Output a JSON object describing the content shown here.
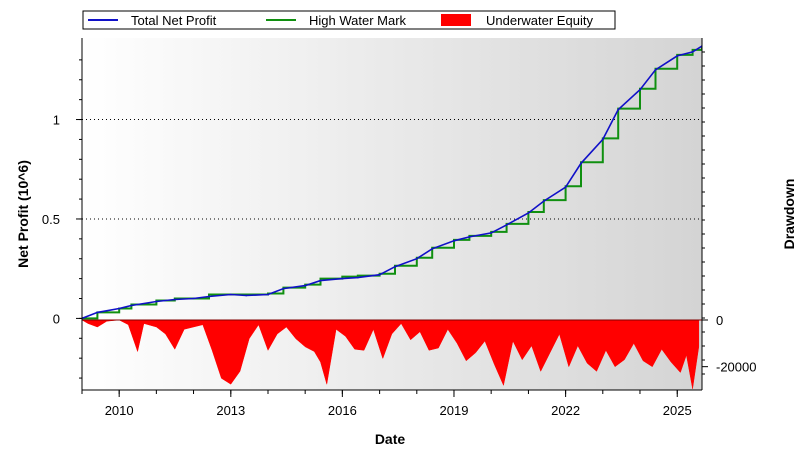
{
  "chart_data": {
    "type": "line",
    "xlabel": "Date",
    "ylabel": "Net Profit (10^6)",
    "y2label": "Drawdown",
    "legend_placement": "top",
    "x_range": [
      "2009-01-01",
      "2025-09-01"
    ],
    "x_ticks": [
      "2010",
      "2013",
      "2016",
      "2019",
      "2022",
      "2025"
    ],
    "ylim": [
      -0.36,
      1.41
    ],
    "y_ticks": [
      {
        "value": 0,
        "label": "0"
      },
      {
        "value": 0.5,
        "label": "0.5"
      },
      {
        "value": 1,
        "label": "1"
      }
    ],
    "y2_ticks": [
      {
        "value": 0,
        "label": "0"
      },
      {
        "value": -20000,
        "label": "-20000"
      }
    ],
    "drawdown_floor": -30000,
    "grid": "horizontal dotted at major y ticks",
    "series": [
      {
        "name": "Total Net Profit",
        "color": "#1010c8",
        "axis": "left",
        "x": [
          "2009-01-01",
          "2009-06-01",
          "2010-01-01",
          "2010-05-01",
          "2011-01-01",
          "2011-07-01",
          "2012-01-01",
          "2012-06-01",
          "2013-01-01",
          "2013-06-01",
          "2014-01-01",
          "2014-06-01",
          "2015-01-01",
          "2015-06-01",
          "2016-01-01",
          "2016-06-01",
          "2017-01-01",
          "2017-06-01",
          "2018-01-01",
          "2018-06-01",
          "2019-01-01",
          "2019-06-01",
          "2020-01-01",
          "2020-06-01",
          "2021-01-01",
          "2021-06-01",
          "2022-01-01",
          "2022-06-01",
          "2023-01-01",
          "2023-06-01",
          "2024-01-01",
          "2024-06-01",
          "2025-01-01",
          "2025-06-01",
          "2025-09-01"
        ],
        "values": [
          0.0,
          0.03,
          0.05,
          0.065,
          0.085,
          0.095,
          0.1,
          0.11,
          0.12,
          0.115,
          0.12,
          0.15,
          0.165,
          0.19,
          0.2,
          0.205,
          0.22,
          0.26,
          0.3,
          0.35,
          0.39,
          0.41,
          0.43,
          0.47,
          0.53,
          0.59,
          0.66,
          0.78,
          0.9,
          1.05,
          1.15,
          1.25,
          1.32,
          1.34,
          1.37
        ]
      },
      {
        "name": "High Water Mark",
        "color": "#109010",
        "axis": "left",
        "x": [
          "2009-01-01",
          "2009-06-01",
          "2010-01-01",
          "2010-05-01",
          "2011-01-01",
          "2011-07-01",
          "2012-01-01",
          "2012-06-01",
          "2013-01-01",
          "2013-06-01",
          "2014-01-01",
          "2014-06-01",
          "2015-01-01",
          "2015-06-01",
          "2016-01-01",
          "2016-06-01",
          "2017-01-01",
          "2017-06-01",
          "2018-01-01",
          "2018-06-01",
          "2019-01-01",
          "2019-06-01",
          "2020-01-01",
          "2020-06-01",
          "2021-01-01",
          "2021-06-01",
          "2022-01-01",
          "2022-06-01",
          "2023-01-01",
          "2023-06-01",
          "2024-01-01",
          "2024-06-01",
          "2025-01-01",
          "2025-06-01",
          "2025-09-01"
        ],
        "values": [
          0.0,
          0.03,
          0.05,
          0.07,
          0.09,
          0.1,
          0.1,
          0.12,
          0.12,
          0.12,
          0.125,
          0.155,
          0.17,
          0.2,
          0.21,
          0.215,
          0.225,
          0.265,
          0.305,
          0.355,
          0.395,
          0.415,
          0.435,
          0.475,
          0.535,
          0.595,
          0.665,
          0.785,
          0.905,
          1.055,
          1.155,
          1.255,
          1.325,
          1.35,
          1.37
        ]
      },
      {
        "name": "Underwater Equity",
        "color": "#ff0000",
        "axis": "right",
        "x": [
          "2009-01-01",
          "2009-03-01",
          "2009-06-01",
          "2009-09-01",
          "2010-01-01",
          "2010-04-01",
          "2010-07-01",
          "2010-09-01",
          "2011-01-01",
          "2011-04-01",
          "2011-07-01",
          "2011-10-01",
          "2012-01-01",
          "2012-04-01",
          "2012-07-01",
          "2012-10-01",
          "2013-01-01",
          "2013-04-01",
          "2013-07-01",
          "2013-10-01",
          "2014-01-01",
          "2014-04-01",
          "2014-07-01",
          "2014-10-01",
          "2015-01-01",
          "2015-04-01",
          "2015-06-01",
          "2015-08-01",
          "2015-11-01",
          "2016-02-01",
          "2016-05-01",
          "2016-08-01",
          "2016-11-01",
          "2017-02-01",
          "2017-05-01",
          "2017-08-01",
          "2017-11-01",
          "2018-02-01",
          "2018-05-01",
          "2018-08-01",
          "2018-11-01",
          "2019-02-01",
          "2019-05-01",
          "2019-08-01",
          "2019-11-01",
          "2020-02-01",
          "2020-05-01",
          "2020-08-01",
          "2020-11-01",
          "2021-02-01",
          "2021-05-01",
          "2021-08-01",
          "2021-11-01",
          "2022-02-01",
          "2022-05-01",
          "2022-08-01",
          "2022-11-01",
          "2023-02-01",
          "2023-05-01",
          "2023-08-01",
          "2023-11-01",
          "2024-02-01",
          "2024-05-01",
          "2024-08-01",
          "2024-11-01",
          "2025-02-01",
          "2025-04-01",
          "2025-06-01",
          "2025-08-01"
        ],
        "values": [
          0,
          -1500,
          -3000,
          -500,
          0,
          -2000,
          -13500,
          -1500,
          -3000,
          -6000,
          -12500,
          -4000,
          -3000,
          -2000,
          -13000,
          -25000,
          -27500,
          -22000,
          -8000,
          -2000,
          -13000,
          -6000,
          -3000,
          -8000,
          -11500,
          -13500,
          -18000,
          -27500,
          -4000,
          -7000,
          -12500,
          -13000,
          -4000,
          -16500,
          -6000,
          -1500,
          -8500,
          -5000,
          -13000,
          -12000,
          -4000,
          -10000,
          -17500,
          -14000,
          -9000,
          -19000,
          -28000,
          -9000,
          -17000,
          -11000,
          -22000,
          -14000,
          -6000,
          -20000,
          -11000,
          -18500,
          -22000,
          -13000,
          -20000,
          -17000,
          -10000,
          -17500,
          -20000,
          -12500,
          -18000,
          -22500,
          -15000,
          -29500,
          -11500
        ]
      }
    ]
  }
}
